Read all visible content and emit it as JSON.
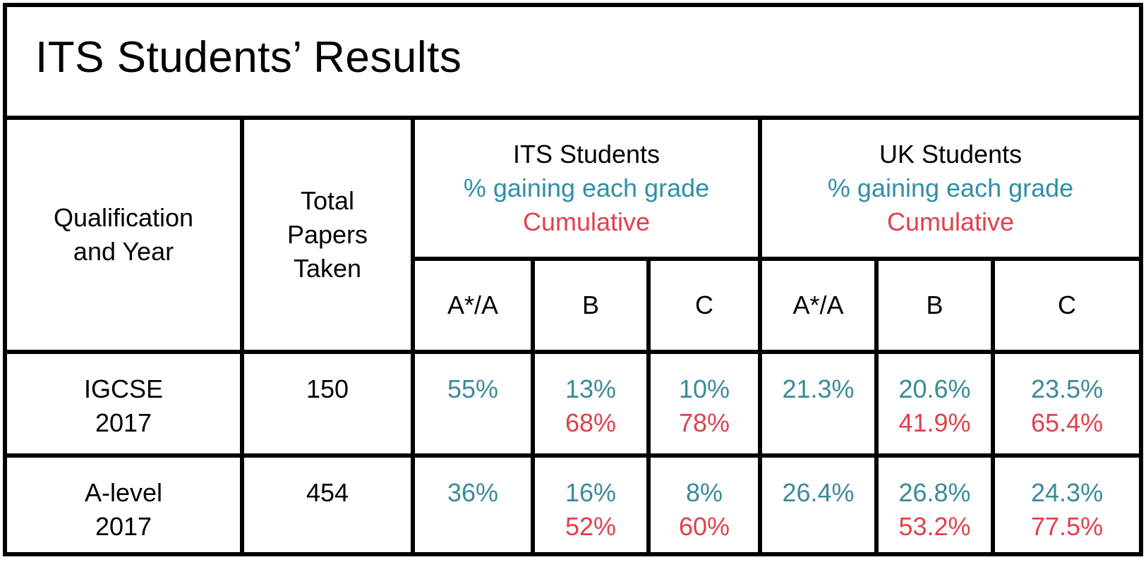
{
  "title": "ITS Students’ Results",
  "headers": {
    "qualification": [
      "Qualification",
      "and Year"
    ],
    "total": [
      "Total",
      "Papers",
      "Taken"
    ],
    "its_group": {
      "name": "ITS Students",
      "subtitle": "% gaining each grade",
      "cumulative": "Cumulative"
    },
    "uk_group": {
      "name": "UK Students",
      "subtitle": "% gaining each grade",
      "cumulative": "Cumulative"
    },
    "grades": [
      "A*/A",
      "B",
      "C"
    ]
  },
  "rows": [
    {
      "qualification": "IGCSE",
      "year": "2017",
      "total": "150",
      "its": [
        {
          "pct": "55%",
          "cum": ""
        },
        {
          "pct": "13%",
          "cum": "68%"
        },
        {
          "pct": "10%",
          "cum": "78%"
        }
      ],
      "uk": [
        {
          "pct": "21.3%",
          "cum": ""
        },
        {
          "pct": "20.6%",
          "cum": "41.9%"
        },
        {
          "pct": "23.5%",
          "cum": "65.4%"
        }
      ]
    },
    {
      "qualification": "A-level",
      "year": "2017",
      "total": "454",
      "its": [
        {
          "pct": "36%",
          "cum": ""
        },
        {
          "pct": "16%",
          "cum": "52%"
        },
        {
          "pct": "8%",
          "cum": "60%"
        }
      ],
      "uk": [
        {
          "pct": "26.4%",
          "cum": ""
        },
        {
          "pct": "26.8%",
          "cum": "53.2%"
        },
        {
          "pct": "24.3%",
          "cum": "77.5%"
        }
      ]
    }
  ],
  "colors": {
    "percent": "#2f8fa6",
    "cumulative": "#e0414b",
    "border": "#000000"
  }
}
